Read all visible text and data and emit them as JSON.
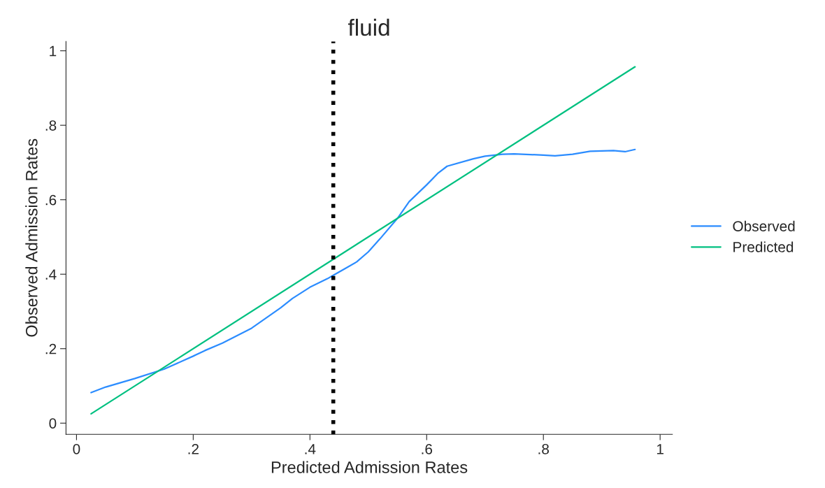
{
  "chart_data": {
    "type": "line",
    "title": "fluid",
    "xlabel": "Predicted Admission Rates",
    "ylabel": "Observed Admission Rates",
    "xlim": [
      -0.018,
      1.021
    ],
    "ylim": [
      -0.03,
      1.025
    ],
    "xticks": [
      {
        "value": 0,
        "label": "0"
      },
      {
        "value": 0.2,
        "label": ".2"
      },
      {
        "value": 0.4,
        "label": ".4"
      },
      {
        "value": 0.6,
        "label": ".6"
      },
      {
        "value": 0.8,
        "label": ".8"
      },
      {
        "value": 1,
        "label": "1"
      }
    ],
    "yticks": [
      {
        "value": 0,
        "label": "0"
      },
      {
        "value": 0.2,
        "label": ".2"
      },
      {
        "value": 0.4,
        "label": ".4"
      },
      {
        "value": 0.6,
        "label": ".6"
      },
      {
        "value": 0.8,
        "label": ".8"
      },
      {
        "value": 1,
        "label": "1"
      }
    ],
    "grid": false,
    "legend": "right",
    "marker": "none",
    "line_style": "solid",
    "series": [
      {
        "name": "Observed",
        "color": "#2b8cff",
        "x": [
          0.025,
          0.05,
          0.1,
          0.15,
          0.2,
          0.22,
          0.25,
          0.3,
          0.35,
          0.37,
          0.4,
          0.43,
          0.44,
          0.46,
          0.48,
          0.5,
          0.52,
          0.55,
          0.57,
          0.6,
          0.62,
          0.635,
          0.68,
          0.7,
          0.73,
          0.75,
          0.8,
          0.82,
          0.85,
          0.88,
          0.92,
          0.94,
          0.957
        ],
        "values": [
          0.082,
          0.097,
          0.12,
          0.145,
          0.18,
          0.195,
          0.215,
          0.255,
          0.31,
          0.335,
          0.365,
          0.388,
          0.397,
          0.415,
          0.433,
          0.46,
          0.495,
          0.55,
          0.595,
          0.64,
          0.672,
          0.69,
          0.71,
          0.717,
          0.722,
          0.723,
          0.72,
          0.718,
          0.722,
          0.73,
          0.732,
          0.729,
          0.735
        ]
      },
      {
        "name": "Predicted",
        "color": "#00c080",
        "x": [
          0.025,
          0.957
        ],
        "values": [
          0.025,
          0.957
        ]
      }
    ],
    "ref_lines": [
      {
        "axis": "x",
        "value": 0.44,
        "color": "#000000",
        "line_style": "dotted"
      }
    ]
  }
}
